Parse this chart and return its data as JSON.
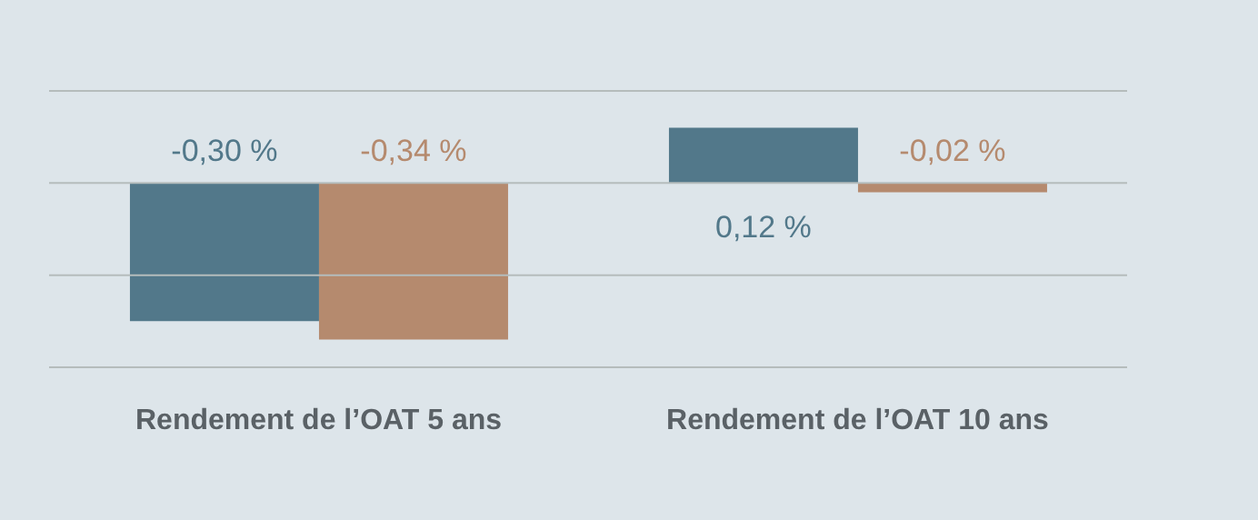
{
  "chart_data": {
    "type": "bar",
    "categories": [
      "Rendement de l’OAT 5 ans",
      "Rendement de l’OAT 10 ans"
    ],
    "series": [
      {
        "color": "#52788a",
        "values": [
          -0.3,
          0.12
        ],
        "value_labels": [
          "-0,30 %",
          "0,12 %"
        ]
      },
      {
        "color": "#b58a6e",
        "values": [
          -0.34,
          -0.02
        ],
        "value_labels": [
          "-0,34 %",
          "-0,02 %"
        ]
      }
    ],
    "ylim": [
      -0.4,
      0.2
    ],
    "yticks": [
      {
        "value": -0.4,
        "label": null
      },
      {
        "value": -0.2,
        "label": null
      },
      {
        "value": 0,
        "label": null
      },
      {
        "value": 0.2,
        "label": null
      }
    ],
    "grid": "y",
    "tick_labels": "x",
    "legend": false
  }
}
